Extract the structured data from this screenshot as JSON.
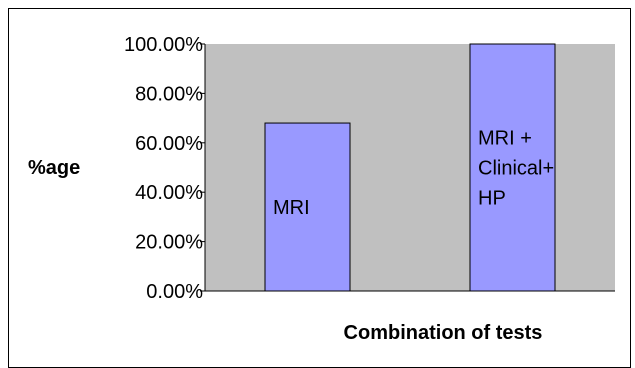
{
  "chart_data": {
    "type": "bar",
    "categories": [
      "MRI",
      "MRI + Clinical+ HP"
    ],
    "category_label_lines": [
      [
        "MRI"
      ],
      [
        "MRI +",
        "Clinical+",
        "HP"
      ]
    ],
    "values": [
      68,
      100
    ],
    "ylabel": "%age",
    "xlabel": "Combination of tests",
    "ylim": [
      0,
      100
    ],
    "yticks": [
      0,
      20,
      40,
      60,
      80,
      100
    ],
    "ytick_labels": [
      "0.00%",
      "20.00%",
      "40.00%",
      "60.00%",
      "80.00%",
      "100.00%"
    ],
    "grid": false,
    "legend": "none",
    "colors": {
      "bar_fill": "#9999ff",
      "plot_background": "#c0c0c0",
      "axis": "#000000",
      "text": "#000000"
    }
  }
}
